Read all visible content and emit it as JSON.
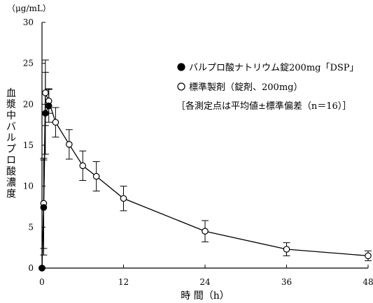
{
  "chart_data": {
    "type": "line",
    "y_unit": "（μg/mL）",
    "ylabel": "血漿中バルプロ酸濃度",
    "xlabel": "時 間（h）",
    "xlim": [
      0,
      48
    ],
    "ylim": [
      0,
      30
    ],
    "x_ticks": [
      0,
      12,
      24,
      36,
      48
    ],
    "y_ticks": [
      0,
      5,
      10,
      15,
      20,
      25,
      30
    ],
    "grid": false,
    "legend_position": "top-right",
    "legend_note": "［各測定点は平均値±標準偏差（n＝16）］",
    "series": [
      {
        "name": "バルプロ酸ナトリウム錠200mg「DSP」",
        "marker": "filled-circle",
        "x": [
          0,
          0.25,
          0.5,
          1
        ],
        "y": [
          0,
          7.4,
          18.9,
          19.8
        ],
        "sd": [
          0,
          5.8,
          5.0,
          2.0
        ]
      },
      {
        "name": "標準製剤（錠剤、200mg）",
        "marker": "open-circle",
        "x": [
          0,
          0.25,
          0.5,
          1,
          2,
          4,
          6,
          8,
          12,
          24,
          36,
          48
        ],
        "y": [
          0,
          7.9,
          21.4,
          20.4,
          17.8,
          15.1,
          12.5,
          11.2,
          8.5,
          4.5,
          2.3,
          1.5
        ],
        "sd": [
          0,
          5.5,
          4.0,
          1.5,
          1.8,
          1.8,
          1.8,
          1.8,
          1.5,
          1.3,
          0.8,
          0.6
        ]
      }
    ]
  }
}
